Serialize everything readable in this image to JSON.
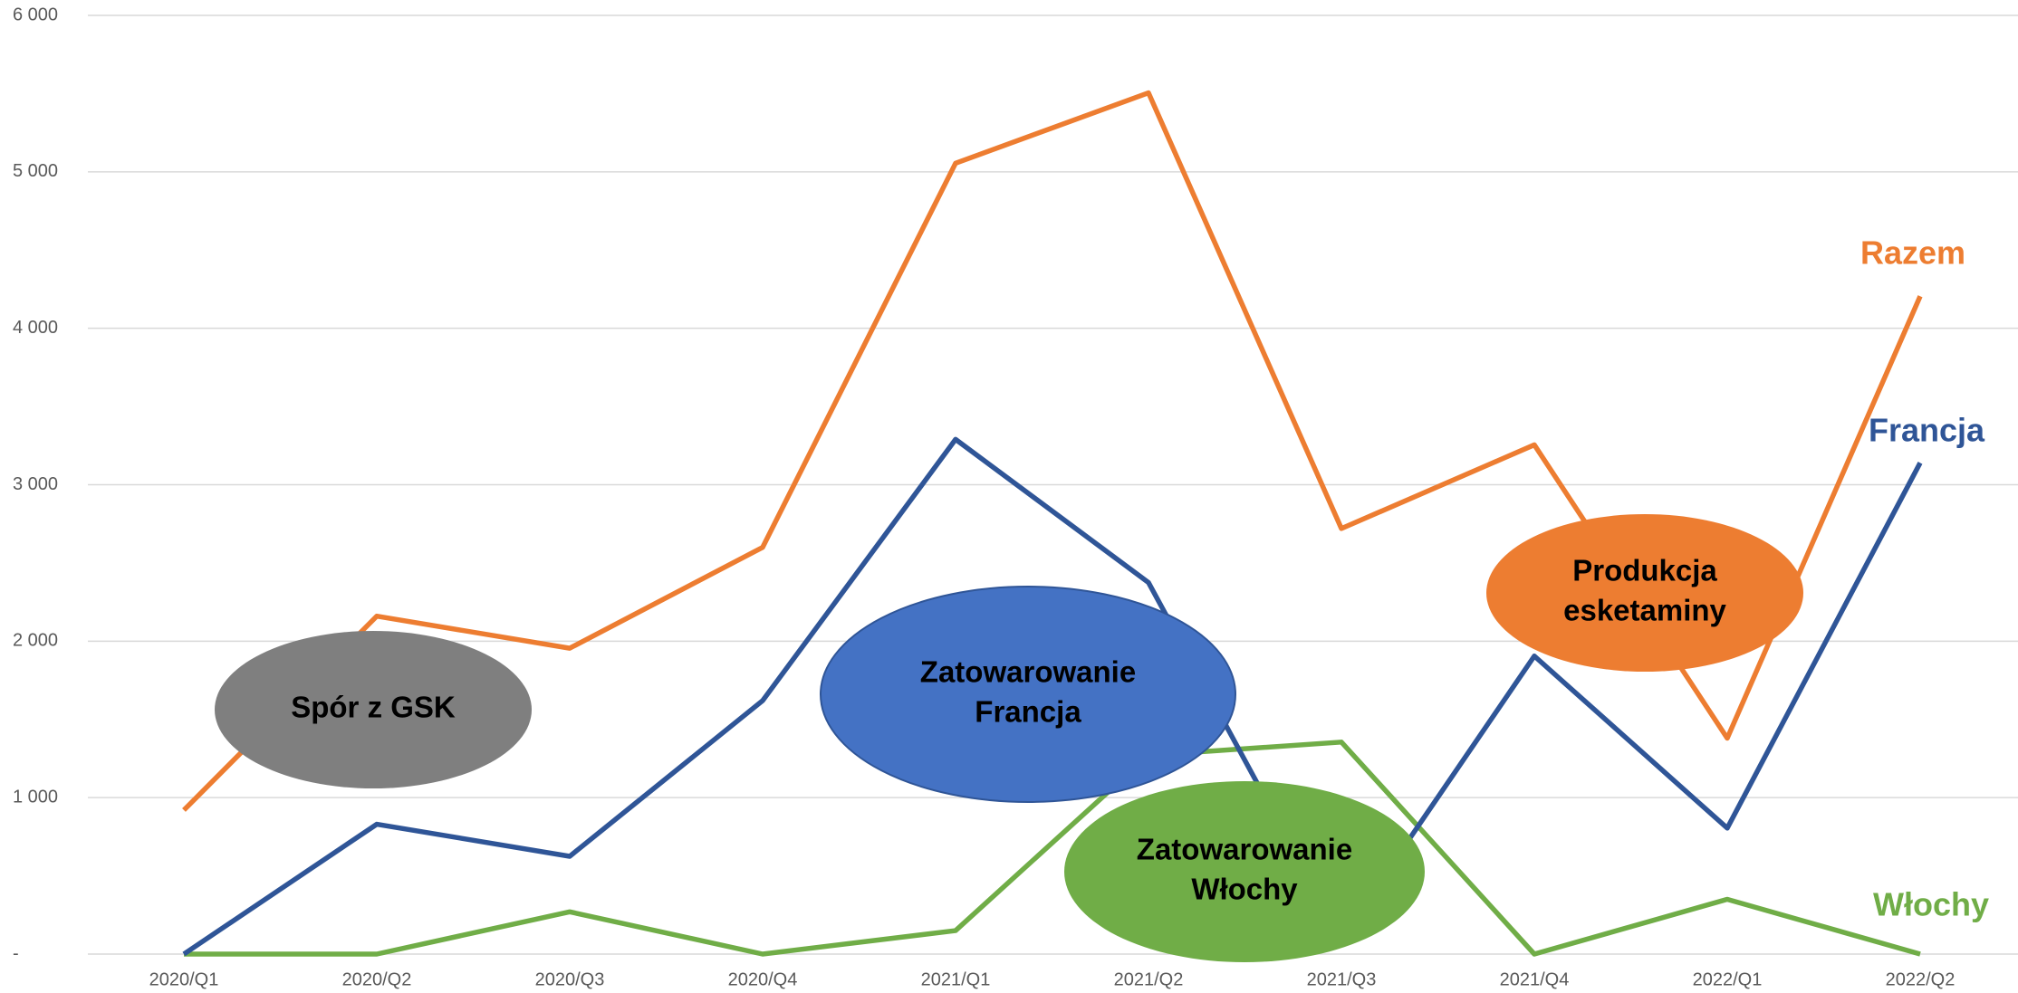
{
  "chart_data": {
    "type": "line",
    "categories": [
      "2020/Q1",
      "2020/Q2",
      "2020/Q3",
      "2020/Q4",
      "2021/Q1",
      "2021/Q2",
      "2021/Q3",
      "2021/Q4",
      "2022/Q1",
      "2022/Q2"
    ],
    "series": [
      {
        "name": "Włochy",
        "color": "#70ad47",
        "values": [
          0,
          0,
          270,
          0,
          150,
          1270,
          1355,
          0,
          350,
          0
        ]
      },
      {
        "name": "Francja",
        "color": "#2f5597",
        "values": [
          0,
          830,
          625,
          1620,
          3290,
          2375,
          100,
          1905,
          805,
          3140
        ]
      },
      {
        "name": "Razem",
        "color": "#ed7d31",
        "values": [
          920,
          2160,
          1955,
          2600,
          5055,
          5505,
          2720,
          3255,
          1380,
          4205
        ]
      }
    ],
    "ylim": [
      0,
      6000
    ],
    "yticks": [
      {
        "value": 0,
        "label": "-"
      },
      {
        "value": 1000,
        "label": "1 000"
      },
      {
        "value": 2000,
        "label": "2 000"
      },
      {
        "value": 3000,
        "label": "3 000"
      },
      {
        "value": 4000,
        "label": "4 000"
      },
      {
        "value": 5000,
        "label": "5 000"
      },
      {
        "value": 6000,
        "label": "6 000"
      }
    ],
    "grid": true,
    "annotations": [
      {
        "lines": [
          "Spór z GSK"
        ],
        "color": "#7f7f7f"
      },
      {
        "lines": [
          "Zatowarowanie",
          "Francja"
        ],
        "color": "#4472c4"
      },
      {
        "lines": [
          "Zatowarowanie",
          "Włochy"
        ],
        "color": "#70ad47"
      },
      {
        "lines": [
          "Produkcja",
          "esketaminy"
        ],
        "color": "#ed7d31"
      }
    ]
  }
}
